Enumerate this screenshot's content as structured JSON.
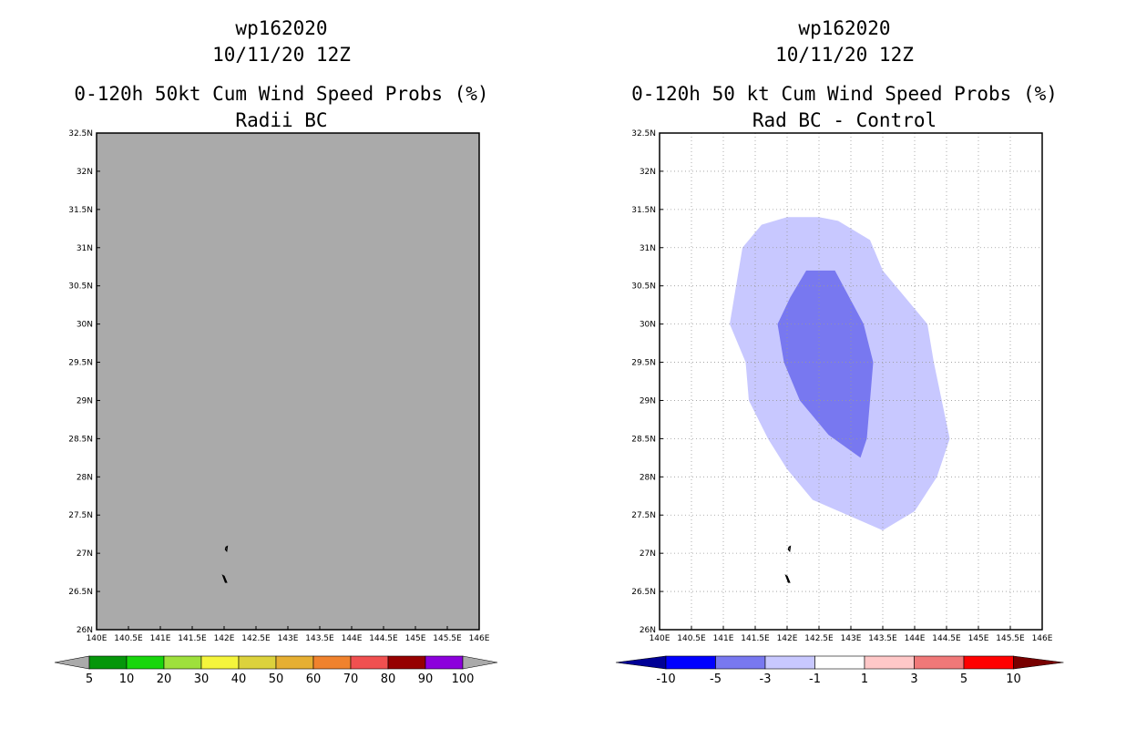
{
  "chart_data": [
    {
      "type": "heatmap",
      "title": "wp162020",
      "datetime": "10/11/20 12Z",
      "subtitle": "0-120h 50kt Cum Wind Speed Probs (%)",
      "subtitle2": "Radii BC",
      "xlim": [
        140,
        146
      ],
      "ylim": [
        26,
        32.5
      ],
      "x_ticks": [
        140,
        140.5,
        141,
        141.5,
        142,
        142.5,
        143,
        143.5,
        144,
        144.5,
        145,
        145.5,
        146
      ],
      "x_tick_labels": [
        "140E",
        "140.5E",
        "141E",
        "141.5E",
        "142E",
        "142.5E",
        "143E",
        "143.5E",
        "144E",
        "144.5E",
        "145E",
        "145.5E",
        "146E"
      ],
      "y_ticks": [
        26,
        26.5,
        27,
        27.5,
        28,
        28.5,
        29,
        29.5,
        30,
        30.5,
        31,
        31.5,
        32,
        32.5
      ],
      "y_tick_labels": [
        "26N",
        "26.5N",
        "27N",
        "27.5N",
        "28N",
        "28.5N",
        "29N",
        "29.5N",
        "30N",
        "30.5N",
        "31N",
        "31.5N",
        "32N",
        "32.5N"
      ],
      "grid": false,
      "background": "#aaaaaa",
      "islands": [
        {
          "name": "island-north",
          "points": [
            [
              142.03,
              27.08
            ],
            [
              142.05,
              27.09
            ],
            [
              142.04,
              27.03
            ],
            [
              142.02,
              27.05
            ]
          ]
        },
        {
          "name": "island-south",
          "points": [
            [
              141.98,
              26.71
            ],
            [
              142.0,
              26.7
            ],
            [
              142.04,
              26.62
            ],
            [
              142.02,
              26.62
            ]
          ]
        }
      ],
      "contours": [],
      "colorbar": {
        "labels": [
          "5",
          "10",
          "20",
          "30",
          "40",
          "50",
          "60",
          "70",
          "80",
          "90",
          "100"
        ],
        "colors": [
          "#05960a",
          "#18d60c",
          "#9ee03c",
          "#f5f53c",
          "#dcd23c",
          "#e6af32",
          "#f0822d",
          "#f05050",
          "#960000",
          "#8c00dc"
        ],
        "end_colors": [
          "#aaaaaa",
          "#aaaaaa"
        ]
      }
    },
    {
      "type": "heatmap",
      "title": "wp162020",
      "datetime": "10/11/20 12Z",
      "subtitle": "0-120h 50 kt Cum Wind Speed Probs (%)",
      "subtitle2": "Rad BC - Control",
      "xlim": [
        140,
        146
      ],
      "ylim": [
        26,
        32.5
      ],
      "x_ticks": [
        140,
        140.5,
        141,
        141.5,
        142,
        142.5,
        143,
        143.5,
        144,
        144.5,
        145,
        145.5,
        146
      ],
      "x_tick_labels": [
        "140E",
        "140.5E",
        "141E",
        "141.5E",
        "142E",
        "142.5E",
        "143E",
        "143.5E",
        "144E",
        "144.5E",
        "145E",
        "145.5E",
        "146E"
      ],
      "y_ticks": [
        26,
        26.5,
        27,
        27.5,
        28,
        28.5,
        29,
        29.5,
        30,
        30.5,
        31,
        31.5,
        32,
        32.5
      ],
      "y_tick_labels": [
        "26N",
        "26.5N",
        "27N",
        "27.5N",
        "28N",
        "28.5N",
        "29N",
        "29.5N",
        "30N",
        "30.5N",
        "31N",
        "31.5N",
        "32N",
        "32.5N"
      ],
      "grid": true,
      "background": "#ffffff",
      "islands": [
        {
          "name": "island-north",
          "points": [
            [
              142.03,
              27.08
            ],
            [
              142.05,
              27.09
            ],
            [
              142.04,
              27.03
            ],
            [
              142.02,
              27.05
            ]
          ]
        },
        {
          "name": "island-south",
          "points": [
            [
              141.98,
              26.71
            ],
            [
              142.0,
              26.7
            ],
            [
              142.04,
              26.62
            ],
            [
              142.02,
              26.62
            ]
          ]
        }
      ],
      "contours": [
        {
          "level": "-3 to -1",
          "color": "#c8c8ff",
          "points": [
            [
              142.5,
              31.4
            ],
            [
              142.8,
              31.35
            ],
            [
              143.3,
              31.1
            ],
            [
              143.5,
              30.7
            ],
            [
              144.2,
              30.0
            ],
            [
              144.3,
              29.5
            ],
            [
              144.55,
              28.5
            ],
            [
              144.35,
              28.0
            ],
            [
              144.0,
              27.55
            ],
            [
              143.5,
              27.3
            ],
            [
              142.95,
              27.5
            ],
            [
              142.4,
              27.7
            ],
            [
              142.0,
              28.1
            ],
            [
              141.7,
              28.5
            ],
            [
              141.4,
              29.0
            ],
            [
              141.35,
              29.5
            ],
            [
              141.1,
              30.0
            ],
            [
              141.2,
              30.5
            ],
            [
              141.3,
              31.0
            ],
            [
              141.6,
              31.3
            ],
            [
              142.0,
              31.4
            ]
          ]
        },
        {
          "level": "-5 to -3",
          "color": "#7878f0",
          "points": [
            [
              142.3,
              30.7
            ],
            [
              142.75,
              30.7
            ],
            [
              143.2,
              30.0
            ],
            [
              143.35,
              29.5
            ],
            [
              143.25,
              28.5
            ],
            [
              143.15,
              28.25
            ],
            [
              142.65,
              28.55
            ],
            [
              142.2,
              29.0
            ],
            [
              141.95,
              29.5
            ],
            [
              141.85,
              30.0
            ],
            [
              142.05,
              30.35
            ]
          ]
        }
      ],
      "colorbar": {
        "labels": [
          "-10",
          "-5",
          "-3",
          "-1",
          "1",
          "3",
          "5",
          "10"
        ],
        "colors": [
          "#0000ff",
          "#7878f0",
          "#c8c8ff",
          "#ffffff",
          "#ffc8c8",
          "#f07878",
          "#ff0000"
        ],
        "end_colors": [
          "#000096",
          "#780000"
        ]
      }
    }
  ]
}
